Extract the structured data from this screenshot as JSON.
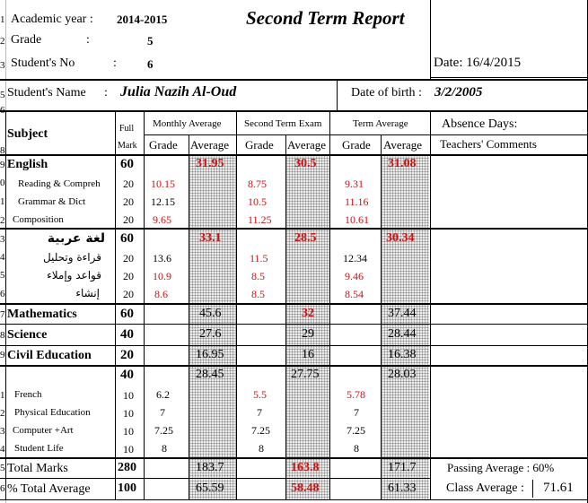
{
  "header": {
    "academic_year_label": "Academic year :",
    "academic_year": "2014-2015",
    "title": "Second Term Report",
    "grade_label": "Grade",
    "grade_colon": ":",
    "grade": "5",
    "students_no_label": "Student's No",
    "students_no_colon": ":",
    "students_no": "6",
    "date": "Date: 16/4/2015",
    "student_name_label": "Student's Name",
    "student_name_colon": ":",
    "student_name": "Julia Nazih Al-Oud",
    "dob_label": "Date of birth :",
    "dob": "3/2/2005"
  },
  "columns": {
    "subject": "Subject",
    "full": "Full",
    "mark": "Mark",
    "monthly_average": "Monthly Average",
    "second_term_exam": "Second Term Exam",
    "term_average": "Term Average",
    "grade": "Grade",
    "average": "Average",
    "absence_days": "Absence Days:",
    "teachers_comments": "Teachers' Comments"
  },
  "rows": {
    "english": {
      "subject": "English",
      "full": "60",
      "ma": "31.95",
      "sa": "30.5",
      "ta": "31.08"
    },
    "reading": {
      "subject": "Reading  & Compreh",
      "full": "20",
      "mg": "10.15",
      "sg": "8.75",
      "tg": "9.31"
    },
    "grammar": {
      "subject": "Grammar & Dict",
      "full": "20",
      "mg": "12.15",
      "sg": "10.5",
      "tg": "11.16"
    },
    "composition": {
      "subject": "Composition",
      "full": "20",
      "mg": "9.65",
      "sg": "11.25",
      "tg": "10.61"
    },
    "arabic": {
      "subject": "لغة عربية",
      "full": "60",
      "ma": "33.1",
      "sa": "28.5",
      "ta": "30.34"
    },
    "ar_reading": {
      "subject": "قراءة وتحليل",
      "full": "20",
      "mg": "13.6",
      "sg": "11.5",
      "tg": "12.34"
    },
    "ar_grammar": {
      "subject": "قواعد وإملاء",
      "full": "20",
      "mg": "10.9",
      "sg": "8.5",
      "tg": "9.46"
    },
    "ar_composition": {
      "subject": "إنشاء",
      "full": "20",
      "mg": "8.6",
      "sg": "8.5",
      "tg": "8.54"
    },
    "math": {
      "subject": "Mathematics",
      "full": "60",
      "ma": "45.6",
      "sa": "32",
      "ta": "37.44"
    },
    "science": {
      "subject": "Science",
      "full": "40",
      "ma": "27.6",
      "sa": "29",
      "ta": "28.44"
    },
    "civil": {
      "subject": "Civil Education",
      "full": "20",
      "ma": "16.95",
      "sa": "16",
      "ta": "16.38"
    },
    "others": {
      "full": "40",
      "ma": "28.45",
      "sa": "27.75",
      "ta": "28.03"
    },
    "french": {
      "subject": "French",
      "full": "10",
      "mg": "6.2",
      "sg": "5.5",
      "tg": "5.78"
    },
    "pe": {
      "subject": "Physical Education",
      "full": "10",
      "mg": "7",
      "sg": "7",
      "tg": "7"
    },
    "computer": {
      "subject": "Computer +Art",
      "full": "10",
      "mg": "7.25",
      "sg": "7.25",
      "tg": "7.25"
    },
    "student_life": {
      "subject": "Student Life",
      "full": "10",
      "mg": "8",
      "sg": "8",
      "tg": "8"
    }
  },
  "totals": {
    "total_label": "Total Marks",
    "total_full": "280",
    "total_ma": "183.7",
    "total_sa": "163.8",
    "total_ta": "171.7",
    "pct_label": "% Total Average",
    "pct_full": "100",
    "pct_ma": "65.59",
    "pct_sa": "58.48",
    "pct_ta": "61.33",
    "passing_average": "Passing Average : 60%",
    "class_average_label": "Class Average :",
    "class_average": "71.61"
  },
  "row_numbers": [
    "1",
    "2",
    "3",
    "",
    "5",
    "6",
    "",
    "8",
    "9",
    "0",
    "1",
    "2",
    "3",
    "4",
    "5",
    "6",
    "7",
    "8",
    "9",
    "",
    "1",
    "2",
    "3",
    "4",
    "5",
    "6"
  ]
}
